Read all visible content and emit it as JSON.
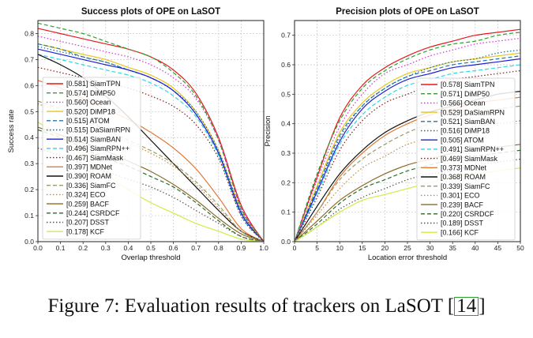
{
  "caption": {
    "text": "Figure 7: Evaluation results of trackers on LaSOT [",
    "ref": "14",
    "close": "]"
  },
  "trackers": [
    {
      "name": "SiamTPN",
      "color": "#e41a1c",
      "dash": "solid"
    },
    {
      "name": "DiMP50",
      "color": "#2ca02c",
      "dash": "dashed"
    },
    {
      "name": "Ocean",
      "color": "#d62fd6",
      "dash": "dotted"
    },
    {
      "name": "DiMP18",
      "color": "#e6c619",
      "dash": "solid"
    },
    {
      "name": "ATOM",
      "color": "#1f77b4",
      "dash": "dashed"
    },
    {
      "name": "DaSiamRPN",
      "color": "#1a6e8e",
      "dash": "dotted"
    },
    {
      "name": "SiamBAN",
      "color": "#1f1fd6",
      "dash": "solid"
    },
    {
      "name": "SiamRPN++",
      "color": "#2fd6e6",
      "dash": "dashed"
    },
    {
      "name": "SiamMask",
      "color": "#8b1a1a",
      "dash": "dotted"
    },
    {
      "name": "MDNet",
      "color": "#e07b39",
      "dash": "solid"
    },
    {
      "name": "ROAM",
      "color": "#111111",
      "dash": "solid"
    },
    {
      "name": "SiamFC",
      "color": "#9a9a6a",
      "dash": "dashed"
    },
    {
      "name": "ECO",
      "color": "#c28a3a",
      "dash": "dotted"
    },
    {
      "name": "BACF",
      "color": "#8b6b2a",
      "dash": "solid"
    },
    {
      "name": "CSRDCF",
      "color": "#2a6e2a",
      "dash": "dashed"
    },
    {
      "name": "DSST",
      "color": "#555555",
      "dash": "dotted"
    },
    {
      "name": "KCF",
      "color": "#ccee44",
      "dash": "solid"
    }
  ],
  "chart_data": [
    {
      "type": "line",
      "title": "Success plots of OPE on LaSOT",
      "xlabel": "Overlap threshold",
      "ylabel": "Success rate",
      "xlim": [
        0,
        1
      ],
      "ylim": [
        0,
        0.85
      ],
      "xticks": [
        "0.0",
        "0.1",
        "0.2",
        "0.3",
        "0.4",
        "0.5",
        "0.6",
        "0.7",
        "0.8",
        "0.9",
        "1.0"
      ],
      "yticks": [
        "0.0",
        "0.1",
        "0.2",
        "0.3",
        "0.4",
        "0.5",
        "0.6",
        "0.7",
        "0.8"
      ],
      "grid": true,
      "legend_position": "lower-left",
      "x": [
        0.0,
        0.1,
        0.2,
        0.3,
        0.4,
        0.5,
        0.6,
        0.7,
        0.8,
        0.9,
        1.0
      ],
      "series": [
        {
          "name": "[0.581] SiamTPN",
          "score": "0.581",
          "values": [
            0.82,
            0.8,
            0.78,
            0.76,
            0.74,
            0.71,
            0.66,
            0.57,
            0.4,
            0.14,
            0.0
          ]
        },
        {
          "name": "[0.574] DiMP50",
          "score": "0.574",
          "values": [
            0.84,
            0.82,
            0.8,
            0.77,
            0.74,
            0.71,
            0.65,
            0.56,
            0.39,
            0.13,
            0.0
          ]
        },
        {
          "name": "[0.560] Ocean",
          "score": "0.560",
          "values": [
            0.79,
            0.77,
            0.75,
            0.73,
            0.71,
            0.68,
            0.63,
            0.55,
            0.39,
            0.13,
            0.0
          ]
        },
        {
          "name": "[0.520] DiMP18",
          "score": "0.520",
          "values": [
            0.76,
            0.74,
            0.72,
            0.7,
            0.67,
            0.64,
            0.59,
            0.5,
            0.35,
            0.12,
            0.0
          ]
        },
        {
          "name": "[0.515] ATOM",
          "score": "0.515",
          "values": [
            0.76,
            0.74,
            0.71,
            0.69,
            0.66,
            0.63,
            0.58,
            0.49,
            0.34,
            0.11,
            0.0
          ]
        },
        {
          "name": "[0.515] DaSiamRPN",
          "score": "0.515",
          "values": [
            0.75,
            0.73,
            0.71,
            0.69,
            0.66,
            0.63,
            0.58,
            0.5,
            0.35,
            0.12,
            0.0
          ]
        },
        {
          "name": "[0.514] SiamBAN",
          "score": "0.514",
          "values": [
            0.74,
            0.72,
            0.7,
            0.68,
            0.66,
            0.63,
            0.58,
            0.49,
            0.34,
            0.11,
            0.0
          ]
        },
        {
          "name": "[0.496] SiamRPN++",
          "score": "0.496",
          "values": [
            0.72,
            0.7,
            0.68,
            0.66,
            0.64,
            0.61,
            0.56,
            0.48,
            0.33,
            0.1,
            0.0
          ]
        },
        {
          "name": "[0.467] SiamMask",
          "score": "0.467",
          "values": [
            0.67,
            0.65,
            0.63,
            0.61,
            0.59,
            0.56,
            0.52,
            0.45,
            0.32,
            0.1,
            0.0
          ]
        },
        {
          "name": "[0.397] MDNet",
          "score": "0.397",
          "values": [
            0.62,
            0.59,
            0.55,
            0.51,
            0.47,
            0.42,
            0.36,
            0.28,
            0.17,
            0.05,
            0.0
          ]
        },
        {
          "name": "[0.390] ROAM",
          "score": "0.390",
          "values": [
            0.72,
            0.68,
            0.63,
            0.56,
            0.48,
            0.39,
            0.3,
            0.21,
            0.12,
            0.04,
            0.0
          ]
        },
        {
          "name": "[0.336] SiamFC",
          "score": "0.336",
          "values": [
            0.54,
            0.51,
            0.47,
            0.43,
            0.39,
            0.35,
            0.3,
            0.23,
            0.14,
            0.04,
            0.0
          ]
        },
        {
          "name": "[0.324] ECO",
          "score": "0.324",
          "values": [
            0.53,
            0.5,
            0.46,
            0.42,
            0.38,
            0.34,
            0.29,
            0.22,
            0.13,
            0.04,
            0.0
          ]
        },
        {
          "name": "[0.259] BACF",
          "score": "0.259",
          "values": [
            0.44,
            0.41,
            0.38,
            0.35,
            0.31,
            0.27,
            0.22,
            0.16,
            0.09,
            0.03,
            0.0
          ]
        },
        {
          "name": "[0.244] CSRDCF",
          "score": "0.244",
          "values": [
            0.43,
            0.4,
            0.36,
            0.32,
            0.29,
            0.25,
            0.21,
            0.15,
            0.08,
            0.02,
            0.0
          ]
        },
        {
          "name": "[0.207] DSST",
          "score": "0.207",
          "values": [
            0.36,
            0.33,
            0.3,
            0.27,
            0.24,
            0.21,
            0.17,
            0.12,
            0.07,
            0.02,
            0.0
          ]
        },
        {
          "name": "[0.178] KCF",
          "score": "0.178",
          "values": [
            0.46,
            0.4,
            0.33,
            0.26,
            0.2,
            0.15,
            0.11,
            0.07,
            0.04,
            0.01,
            0.0
          ]
        }
      ]
    },
    {
      "type": "line",
      "title": "Precision plots of OPE on LaSOT",
      "xlabel": "Location error threshold",
      "ylabel": "Precision",
      "xlim": [
        0,
        50
      ],
      "ylim": [
        0,
        0.75
      ],
      "xticks": [
        "0",
        "5",
        "10",
        "15",
        "20",
        "25",
        "30",
        "35",
        "40",
        "45",
        "50"
      ],
      "yticks": [
        "0.0",
        "0.1",
        "0.2",
        "0.3",
        "0.4",
        "0.5",
        "0.6",
        "0.7"
      ],
      "grid": true,
      "legend_position": "lower-right",
      "x": [
        0,
        5,
        10,
        15,
        20,
        25,
        30,
        35,
        40,
        45,
        50
      ],
      "series": [
        {
          "name": "[0.578] SiamTPN",
          "score": "0.578",
          "values": [
            0.0,
            0.22,
            0.42,
            0.53,
            0.59,
            0.63,
            0.66,
            0.68,
            0.7,
            0.71,
            0.72
          ]
        },
        {
          "name": "[0.571] DiMP50",
          "score": "0.571",
          "values": [
            0.0,
            0.23,
            0.41,
            0.52,
            0.58,
            0.62,
            0.65,
            0.67,
            0.68,
            0.7,
            0.71
          ]
        },
        {
          "name": "[0.566] Ocean",
          "score": "0.566",
          "values": [
            0.0,
            0.21,
            0.39,
            0.5,
            0.57,
            0.6,
            0.63,
            0.65,
            0.67,
            0.68,
            0.69
          ]
        },
        {
          "name": "[0.529] DaSiamRPN",
          "score": "0.529",
          "values": [
            0.0,
            0.19,
            0.37,
            0.47,
            0.53,
            0.57,
            0.59,
            0.61,
            0.62,
            0.63,
            0.64
          ]
        },
        {
          "name": "[0.521] SiamBAN",
          "score": "0.521",
          "values": [
            0.0,
            0.18,
            0.36,
            0.46,
            0.52,
            0.56,
            0.58,
            0.6,
            0.61,
            0.62,
            0.63
          ]
        },
        {
          "name": "[0.516] DiMP18",
          "score": "0.516",
          "values": [
            0.0,
            0.18,
            0.35,
            0.46,
            0.52,
            0.56,
            0.59,
            0.61,
            0.62,
            0.64,
            0.65
          ]
        },
        {
          "name": "[0.505] ATOM",
          "score": "0.505",
          "values": [
            0.0,
            0.17,
            0.34,
            0.45,
            0.51,
            0.55,
            0.57,
            0.59,
            0.6,
            0.61,
            0.62
          ]
        },
        {
          "name": "[0.491] SiamRPN++",
          "score": "0.491",
          "values": [
            0.0,
            0.16,
            0.33,
            0.43,
            0.49,
            0.53,
            0.55,
            0.57,
            0.58,
            0.59,
            0.6
          ]
        },
        {
          "name": "[0.469] SiamMask",
          "score": "0.469",
          "values": [
            0.0,
            0.15,
            0.31,
            0.41,
            0.47,
            0.5,
            0.53,
            0.55,
            0.56,
            0.57,
            0.58
          ]
        },
        {
          "name": "[0.373] MDNet",
          "score": "0.373",
          "values": [
            0.0,
            0.1,
            0.22,
            0.3,
            0.36,
            0.4,
            0.43,
            0.45,
            0.47,
            0.48,
            0.49
          ]
        },
        {
          "name": "[0.368] ROAM",
          "score": "0.368",
          "values": [
            0.0,
            0.12,
            0.23,
            0.31,
            0.37,
            0.41,
            0.44,
            0.46,
            0.48,
            0.5,
            0.51
          ]
        },
        {
          "name": "[0.339] SiamFC",
          "score": "0.339",
          "values": [
            0.0,
            0.1,
            0.21,
            0.28,
            0.33,
            0.37,
            0.4,
            0.42,
            0.44,
            0.45,
            0.46
          ]
        },
        {
          "name": "[0.301] ECO",
          "score": "0.301",
          "values": [
            0.0,
            0.09,
            0.18,
            0.25,
            0.29,
            0.33,
            0.35,
            0.37,
            0.39,
            0.4,
            0.41
          ]
        },
        {
          "name": "[0.239] BACF",
          "score": "0.239",
          "values": [
            0.0,
            0.07,
            0.14,
            0.19,
            0.23,
            0.26,
            0.28,
            0.3,
            0.31,
            0.32,
            0.33
          ]
        },
        {
          "name": "[0.220] CSRDCF",
          "score": "0.220",
          "values": [
            0.0,
            0.06,
            0.13,
            0.18,
            0.21,
            0.24,
            0.26,
            0.28,
            0.29,
            0.3,
            0.31
          ]
        },
        {
          "name": "[0.189] DSST",
          "score": "0.189",
          "values": [
            0.0,
            0.05,
            0.11,
            0.15,
            0.18,
            0.21,
            0.23,
            0.24,
            0.26,
            0.27,
            0.28
          ]
        },
        {
          "name": "[0.166] KCF",
          "score": "0.166",
          "values": [
            0.0,
            0.05,
            0.1,
            0.14,
            0.16,
            0.18,
            0.2,
            0.22,
            0.23,
            0.24,
            0.25
          ]
        }
      ]
    }
  ]
}
